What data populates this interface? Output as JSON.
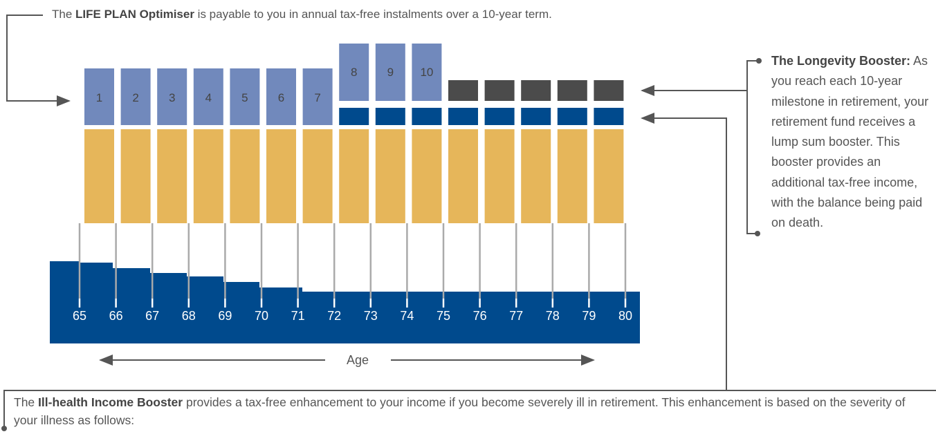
{
  "top_note": {
    "before": "The ",
    "bold": "LIFE PLAN Optimiser",
    "after": " is payable to you in annual tax-free instalments over a 10-year term."
  },
  "instalments": [
    "1",
    "2",
    "3",
    "4",
    "5",
    "6",
    "7",
    "8",
    "9",
    "10"
  ],
  "ages": [
    "65",
    "66",
    "67",
    "68",
    "69",
    "70",
    "71",
    "72",
    "73",
    "74",
    "75",
    "76",
    "77",
    "78",
    "79",
    "80"
  ],
  "axis_label": "Age",
  "right_note": {
    "bold": "The Longevity Booster:",
    "after": " As you reach each 10-year milestone in retirement, your retirement fund receives a lump sum booster. This booster provides an additional tax-free income, with the balance being paid on death."
  },
  "bottom_note": {
    "before": "The ",
    "bold": "Ill-health Income Booster",
    "after": " provides a tax-free enhancement to your income if you become severely ill in retirement. This enhancement is based on the severity of your illness as follows:"
  }
}
